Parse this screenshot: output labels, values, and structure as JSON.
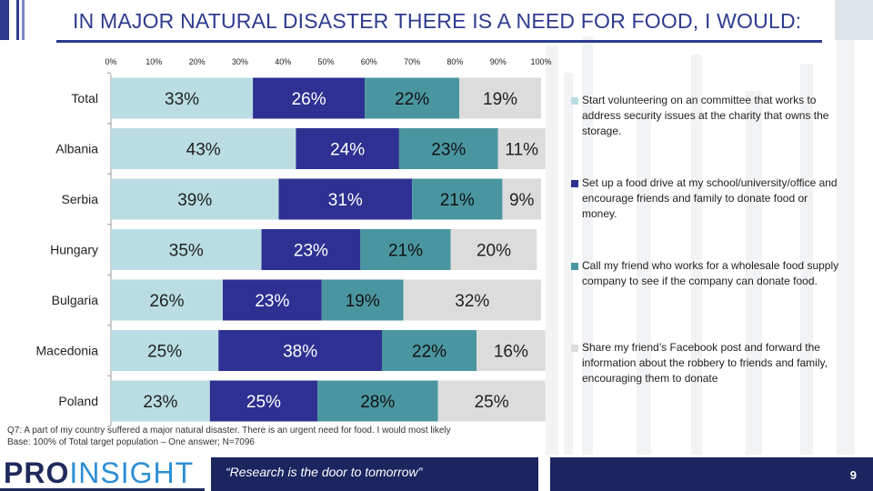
{
  "title": "IN MAJOR NATURAL DISASTER THERE IS A NEED FOR FOOD, I WOULD:",
  "chart_data": {
    "type": "bar",
    "orientation": "horizontal",
    "stacked": true,
    "xlim": [
      0,
      100
    ],
    "x_ticks": [
      "0%",
      "10%",
      "20%",
      "30%",
      "40%",
      "50%",
      "60%",
      "70%",
      "80%",
      "90%",
      "100%"
    ],
    "categories": [
      "Total",
      "Albania",
      "Serbia",
      "Hungary",
      "Bulgaria",
      "Macedonia",
      "Poland"
    ],
    "series": [
      {
        "name": "Start volunteering on an committee that works to address security issues at the charity that owns the storage.",
        "color": "#b9dde2",
        "label_color": "#222222",
        "values": [
          33,
          43,
          39,
          35,
          26,
          25,
          23
        ],
        "labels": [
          "33%",
          "43%",
          "39%",
          "35%",
          "26%",
          "25%",
          "23%"
        ]
      },
      {
        "name": "Set up a food drive at my school/university/office and encourage friends and family to donate food or money.",
        "color": "#2e3192",
        "label_color": "#ffffff",
        "values": [
          26,
          24,
          31,
          23,
          23,
          38,
          25
        ],
        "labels": [
          "26%",
          "24%",
          "31%",
          "23%",
          "23%",
          "38%",
          "25%"
        ]
      },
      {
        "name": "Call my friend who works for a wholesale food supply company to see if the company can donate food.",
        "color": "#4a96a0",
        "label_color": "#111111",
        "values": [
          22,
          23,
          21,
          21,
          19,
          22,
          28
        ],
        "labels": [
          "22%",
          "23%",
          "21%",
          "21%",
          "19%",
          "22%",
          "28%"
        ]
      },
      {
        "name": "Share my friend’s Facebook post and forward the information about the robbery to friends and family, encouraging them to donate",
        "color": "#dcdcdc",
        "label_color": "#222222",
        "values": [
          19,
          11,
          9,
          20,
          32,
          16,
          25
        ],
        "labels": [
          "19%",
          "11%",
          "9%",
          "20%",
          "32%",
          "16%",
          "25%"
        ]
      }
    ]
  },
  "footnote": {
    "question": "Q7: A part of my country suffered a major natural disaster. There is an urgent need for food. I would most likely",
    "base": "Base: 100% of Total target population – One answer; N=7096"
  },
  "brand": {
    "pro": "PRO",
    "insight": "INSIGHT"
  },
  "slogan": "“Research is the door to tomorrow”",
  "page_number": "9"
}
